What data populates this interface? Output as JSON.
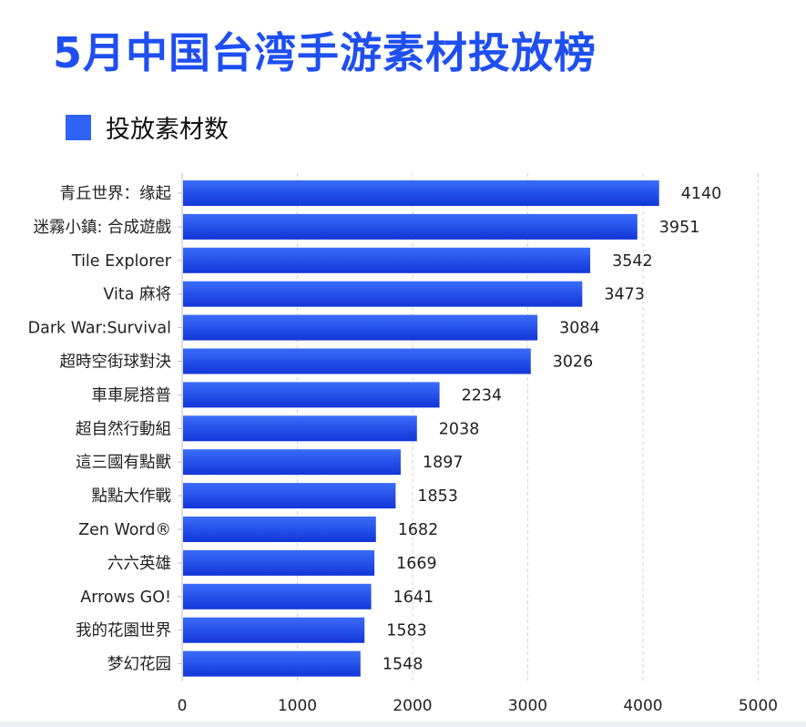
{
  "title": "5月中国台湾手游素材投放榜",
  "legend": {
    "label": "投放素材数",
    "color": "#2f63f5"
  },
  "colors": {
    "title": "#1f4ff0",
    "bar_top": "#3b6cfa",
    "bar_bottom": "#1236d8",
    "grid": "#d4d4d4",
    "axis": "#bfbfbf",
    "text": "#222222"
  },
  "chart_data": {
    "type": "bar",
    "orientation": "horizontal",
    "categories": [
      "青丘世界：缘起",
      "迷霧小鎮: 合成遊戲",
      "Tile Explorer",
      "Vita 麻将",
      "Dark War:Survival",
      "超時空街球對決",
      "車車屍搭普",
      "超自然行動組",
      "這三國有點獸",
      "點點大作戰",
      "Zen Word®",
      "六六英雄",
      "Arrows GO!",
      "我的花園世界",
      "梦幻花园"
    ],
    "series": [
      {
        "name": "投放素材数",
        "values": [
          4140,
          3951,
          3542,
          3473,
          3084,
          3026,
          2234,
          2038,
          1897,
          1853,
          1682,
          1669,
          1641,
          1583,
          1548
        ]
      }
    ],
    "xlim": [
      0,
      5000
    ],
    "xticks": [
      0,
      1000,
      2000,
      3000,
      4000,
      5000
    ],
    "grid": "vertical dashed",
    "legend_position": "top-left"
  }
}
